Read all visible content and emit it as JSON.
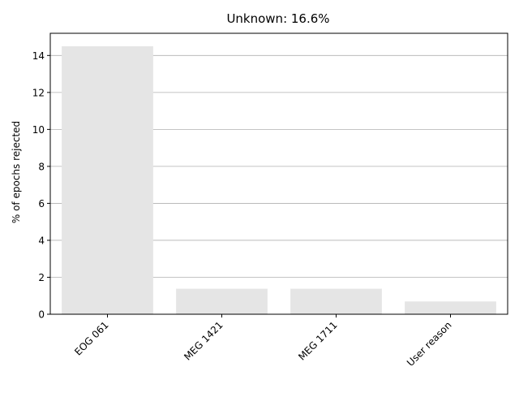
{
  "chart_data": {
    "type": "bar",
    "title": "Unknown: 16.6%",
    "xlabel": "",
    "ylabel": "% of epochs rejected",
    "categories": [
      "EOG 061",
      "MEG 1421",
      "MEG 1711",
      "User reason"
    ],
    "values": [
      14.5,
      1.38,
      1.38,
      0.69
    ],
    "ylim": [
      0,
      15.2
    ],
    "yticks": [
      0,
      2,
      4,
      6,
      8,
      10,
      12,
      14
    ],
    "grid": "y-major",
    "bar_color": "#e5e5e5",
    "grid_color": "#b0b0b0"
  }
}
